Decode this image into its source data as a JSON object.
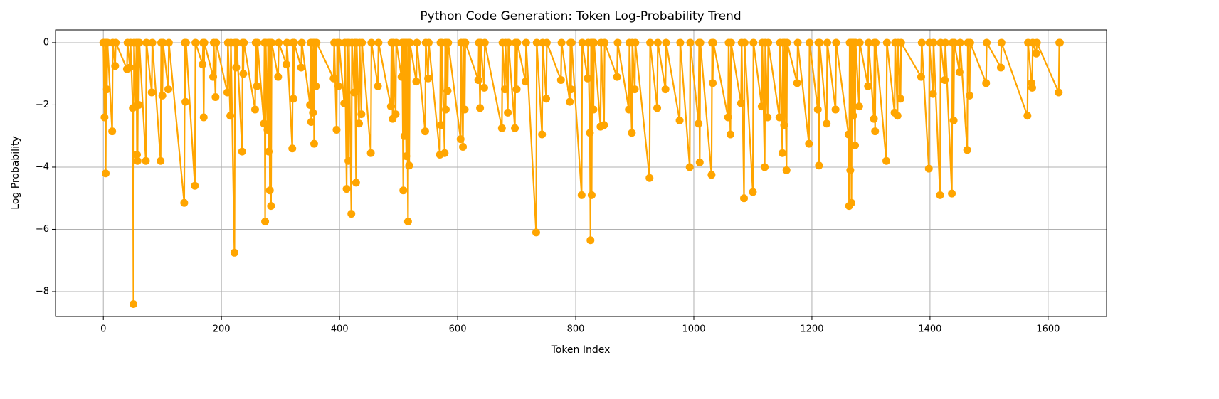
{
  "chart_data": {
    "type": "line",
    "title": "Python Code Generation: Token Log-Probability Trend",
    "x_label": "Token Index",
    "y_label": "Log Probability",
    "color": "#ffa500",
    "grid": true,
    "marker": "circle",
    "xlim": [
      -81,
      1699
    ],
    "ylim": [
      -8.8,
      0.41
    ],
    "xticks": [
      0,
      200,
      400,
      600,
      800,
      1000,
      1200,
      1400,
      1600
    ],
    "yticks": [
      {
        "value": -8,
        "label": "−8"
      },
      {
        "value": -6,
        "label": "−6"
      },
      {
        "value": -4,
        "label": "−4"
      },
      {
        "value": -2,
        "label": "−2"
      },
      0
    ],
    "x": [
      0,
      2,
      3,
      4,
      5,
      6,
      7,
      15,
      16,
      20,
      21,
      40,
      41,
      45,
      46,
      50,
      51,
      52,
      55,
      56,
      57,
      58,
      59,
      60,
      61,
      72,
      73,
      82,
      83,
      97,
      98,
      100,
      101,
      110,
      111,
      137,
      138,
      139,
      140,
      155,
      156,
      168,
      169,
      170,
      171,
      186,
      187,
      190,
      191,
      210,
      211,
      215,
      216,
      222,
      223,
      225,
      226,
      235,
      236,
      237,
      238,
      257,
      258,
      260,
      261,
      272,
      273,
      274,
      275,
      278,
      279,
      280,
      281,
      282,
      283,
      284,
      285,
      296,
      297,
      310,
      311,
      320,
      321,
      322,
      323,
      335,
      336,
      350,
      351,
      352,
      353,
      355,
      356,
      357,
      358,
      360,
      361,
      390,
      391,
      395,
      396,
      398,
      399,
      408,
      409,
      412,
      413,
      415,
      416,
      420,
      421,
      425,
      426,
      428,
      429,
      433,
      434,
      437,
      438,
      453,
      454,
      465,
      466,
      487,
      488,
      490,
      491,
      495,
      496,
      505,
      506,
      508,
      509,
      510,
      511,
      513,
      514,
      516,
      517,
      518,
      519,
      530,
      531,
      545,
      546,
      550,
      551,
      570,
      571,
      572,
      573,
      578,
      579,
      580,
      581,
      583,
      584,
      605,
      606,
      609,
      610,
      612,
      613,
      635,
      636,
      638,
      639,
      645,
      646,
      675,
      676,
      680,
      681,
      685,
      686,
      697,
      698,
      700,
      701,
      715,
      716,
      733,
      734,
      743,
      744,
      750,
      751,
      775,
      776,
      790,
      791,
      792,
      793,
      810,
      811,
      820,
      821,
      824,
      825,
      826,
      827,
      828,
      830,
      831,
      842,
      843,
      848,
      849,
      870,
      871,
      890,
      891,
      895,
      896,
      900,
      901,
      925,
      926,
      938,
      939,
      952,
      953,
      976,
      977,
      993,
      994,
      1008,
      1009,
      1010,
      1011,
      1030,
      1031,
      1032,
      1033,
      1058,
      1059,
      1062,
      1063,
      1080,
      1081,
      1085,
      1086,
      1100,
      1101,
      1115,
      1116,
      1120,
      1121,
      1125,
      1126,
      1145,
      1146,
      1150,
      1151,
      1153,
      1154,
      1157,
      1158,
      1175,
      1176,
      1195,
      1196,
      1210,
      1211,
      1212,
      1213,
      1225,
      1226,
      1240,
      1241,
      1262,
      1263,
      1264,
      1265,
      1266,
      1267,
      1268,
      1270,
      1271,
      1273,
      1274,
      1280,
      1281,
      1295,
      1296,
      1305,
      1306,
      1307,
      1308,
      1326,
      1327,
      1340,
      1341,
      1345,
      1346,
      1350,
      1351,
      1385,
      1386,
      1398,
      1399,
      1405,
      1406,
      1417,
      1418,
      1425,
      1426,
      1437,
      1438,
      1440,
      1441,
      1450,
      1451,
      1463,
      1464,
      1467,
      1468,
      1495,
      1496,
      1520,
      1521,
      1565,
      1566,
      1572,
      1573,
      1574,
      1580,
      1581,
      1618,
      1619,
      1620
    ],
    "values": [
      0,
      -2.4,
      0,
      -4.2,
      0,
      -1.5,
      0,
      -2.85,
      0,
      -0.75,
      0,
      -0.85,
      0,
      -0.8,
      0,
      -2.1,
      -8.4,
      0,
      -2.05,
      0,
      -3.6,
      -3.8,
      0,
      -2.0,
      0,
      -3.8,
      0,
      -1.6,
      0,
      -3.8,
      0,
      -1.7,
      0,
      -1.5,
      0,
      -5.15,
      0,
      -1.9,
      0,
      -4.6,
      0,
      -0.7,
      0,
      -2.4,
      0,
      -1.1,
      0,
      -1.75,
      0,
      -1.6,
      0,
      -2.35,
      0,
      -6.75,
      0,
      -0.8,
      0,
      -3.5,
      0,
      -1.0,
      0,
      -2.15,
      0,
      -1.4,
      0,
      -2.6,
      0,
      -5.75,
      0,
      -2.8,
      0,
      -3.5,
      0,
      -4.75,
      0,
      -5.25,
      0,
      -1.1,
      0,
      -0.7,
      0,
      -3.4,
      0,
      -1.8,
      0,
      -0.8,
      0,
      -2.0,
      0,
      -2.55,
      0,
      -2.25,
      0,
      -3.25,
      0,
      -1.4,
      0,
      -1.15,
      0,
      -2.8,
      0,
      -1.4,
      0,
      -1.95,
      0,
      -4.7,
      0,
      -3.8,
      0,
      -5.5,
      0,
      -1.6,
      0,
      -4.5,
      0,
      -2.6,
      0,
      -2.3,
      0,
      -3.55,
      0,
      -1.4,
      0,
      -2.05,
      0,
      -2.45,
      0,
      -2.3,
      0,
      -1.1,
      0,
      -4.75,
      0,
      -3.0,
      0,
      -3.65,
      0,
      -5.75,
      0,
      -3.95,
      0,
      -1.25,
      0,
      -2.85,
      0,
      -1.15,
      0,
      -3.6,
      0,
      -2.65,
      0,
      -3.55,
      0,
      -2.15,
      0,
      -1.55,
      0,
      -3.1,
      0,
      -3.35,
      0,
      -2.15,
      0,
      -1.2,
      0,
      -2.1,
      0,
      -1.45,
      0,
      -2.75,
      0,
      -1.5,
      0,
      -2.25,
      0,
      -2.75,
      0,
      -1.5,
      0,
      -1.25,
      0,
      -6.1,
      0,
      -2.95,
      0,
      -1.8,
      0,
      -1.2,
      0,
      -1.9,
      0,
      -1.5,
      0,
      -4.9,
      0,
      -1.15,
      0,
      -2.9,
      -6.35,
      0,
      -4.9,
      0,
      -2.15,
      0,
      -2.7,
      0,
      -2.65,
      0,
      -1.1,
      0,
      -2.15,
      0,
      -2.9,
      0,
      -1.5,
      0,
      -4.35,
      0,
      -2.1,
      0,
      -1.5,
      0,
      -2.5,
      0,
      -4.0,
      0,
      -2.6,
      0,
      -3.85,
      0,
      -4.25,
      0,
      -1.3,
      0,
      -2.4,
      0,
      -2.95,
      0,
      -1.95,
      0,
      -5.0,
      0,
      -4.8,
      0,
      -2.05,
      0,
      -4.0,
      0,
      -2.4,
      0,
      -2.4,
      0,
      -3.55,
      0,
      -2.65,
      0,
      -4.1,
      0,
      -1.3,
      0,
      -3.25,
      0,
      -2.15,
      0,
      -3.95,
      0,
      -2.6,
      0,
      -2.15,
      0,
      -2.95,
      -5.25,
      0,
      -4.1,
      0,
      -5.15,
      0,
      -2.35,
      0,
      -3.3,
      0,
      -2.05,
      0,
      -1.4,
      0,
      -2.45,
      0,
      -2.85,
      0,
      -3.8,
      0,
      -2.25,
      0,
      -2.35,
      0,
      -1.8,
      0,
      -1.1,
      0,
      -4.05,
      0,
      -1.65,
      0,
      -4.9,
      0,
      -1.2,
      0,
      -4.85,
      0,
      -2.5,
      0,
      -0.95,
      0,
      -3.45,
      0,
      -1.7,
      0,
      -1.3,
      0,
      -0.8,
      0,
      -2.35,
      0,
      -1.3,
      -1.45,
      0,
      -0.35,
      0,
      -1.6,
      0,
      0
    ]
  }
}
